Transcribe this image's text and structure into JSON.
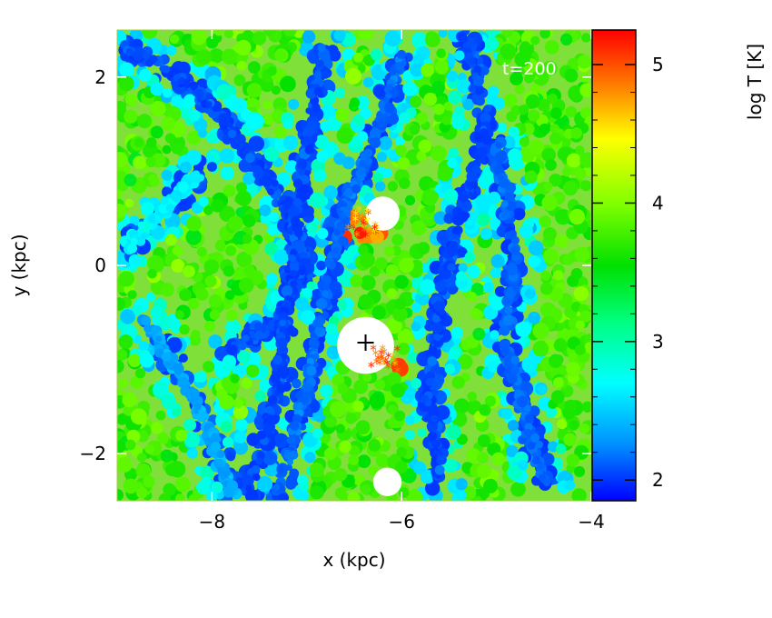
{
  "chart_data": {
    "type": "scatter",
    "description_of_marks": "particle scatter map colored by log temperature",
    "xlabel": "x (kpc)",
    "ylabel": "y (kpc)",
    "xlim": [
      -9.0,
      -4.0
    ],
    "ylim": [
      -2.5,
      2.5
    ],
    "x_ticks": [
      -8,
      -6,
      -4
    ],
    "y_ticks": [
      -2,
      0,
      2
    ],
    "x_tick_labels": [
      "−8",
      "−6",
      "−4"
    ],
    "y_tick_labels": [
      "−2",
      "0",
      "2"
    ],
    "annotation": "t=200",
    "marker": {
      "x": -6.38,
      "y": -0.82,
      "symbol": "+"
    },
    "colorbar": {
      "label": "log T [K]",
      "range": [
        1.85,
        5.25
      ],
      "ticks": [
        2,
        3,
        4,
        5
      ],
      "tick_labels": [
        "2",
        "3",
        "4",
        "5"
      ],
      "colors": [
        "#0000ff",
        "#0090ff",
        "#00ffff",
        "#00ff80",
        "#00e000",
        "#80ff00",
        "#ffff00",
        "#ff8000",
        "#ff0000"
      ]
    },
    "features": {
      "cold_arms": [
        {
          "points": [
            [
              -8.9,
              2.3
            ],
            [
              -8.2,
              1.9
            ],
            [
              -7.6,
              1.2
            ],
            [
              -7.2,
              0.6
            ],
            [
              -7.0,
              0.0
            ],
            [
              -7.3,
              -0.6
            ],
            [
              -7.8,
              -0.9
            ]
          ],
          "logT": 2.0
        },
        {
          "points": [
            [
              -6.8,
              2.3
            ],
            [
              -7.0,
              1.3
            ],
            [
              -7.1,
              0.4
            ],
            [
              -7.2,
              -0.4
            ],
            [
              -7.3,
              -1.3
            ],
            [
              -7.6,
              -2.4
            ]
          ],
          "logT": 2.0
        },
        {
          "points": [
            [
              -6.0,
              2.2
            ],
            [
              -6.3,
              1.3
            ],
            [
              -6.6,
              0.6
            ],
            [
              -6.8,
              -0.3
            ],
            [
              -7.0,
              -1.3
            ],
            [
              -7.3,
              -2.4
            ]
          ],
          "logT": 2.1
        },
        {
          "points": [
            [
              -5.3,
              2.4
            ],
            [
              -5.1,
              1.4
            ],
            [
              -5.4,
              0.5
            ],
            [
              -5.6,
              -0.4
            ],
            [
              -5.7,
              -1.4
            ],
            [
              -5.6,
              -2.3
            ]
          ],
          "logT": 2.0
        },
        {
          "points": [
            [
              -5.0,
              1.3
            ],
            [
              -4.8,
              0.2
            ],
            [
              -4.9,
              -0.8
            ],
            [
              -4.7,
              -1.6
            ],
            [
              -4.5,
              -2.3
            ]
          ],
          "logT": 2.1
        },
        {
          "points": [
            [
              -8.7,
              -0.6
            ],
            [
              -8.3,
              -1.2
            ],
            [
              -8.0,
              -1.8
            ],
            [
              -7.8,
              -2.4
            ]
          ],
          "logT": 2.3
        },
        {
          "points": [
            [
              -8.9,
              0.2
            ],
            [
              -8.5,
              0.6
            ],
            [
              -8.1,
              1.0
            ]
          ],
          "logT": 2.6
        }
      ],
      "hot_regions": [
        {
          "x": -6.4,
          "y": 0.45,
          "r": 0.25,
          "logT": 5.2
        },
        {
          "x": -6.15,
          "y": -1.0,
          "r": 0.2,
          "logT": 5.2
        }
      ],
      "void_regions": [
        {
          "x": -6.38,
          "y": -0.85,
          "r": 0.3
        },
        {
          "x": -6.2,
          "y": 0.55,
          "r": 0.18
        },
        {
          "x": -6.15,
          "y": -2.3,
          "r": 0.15
        }
      ]
    }
  }
}
